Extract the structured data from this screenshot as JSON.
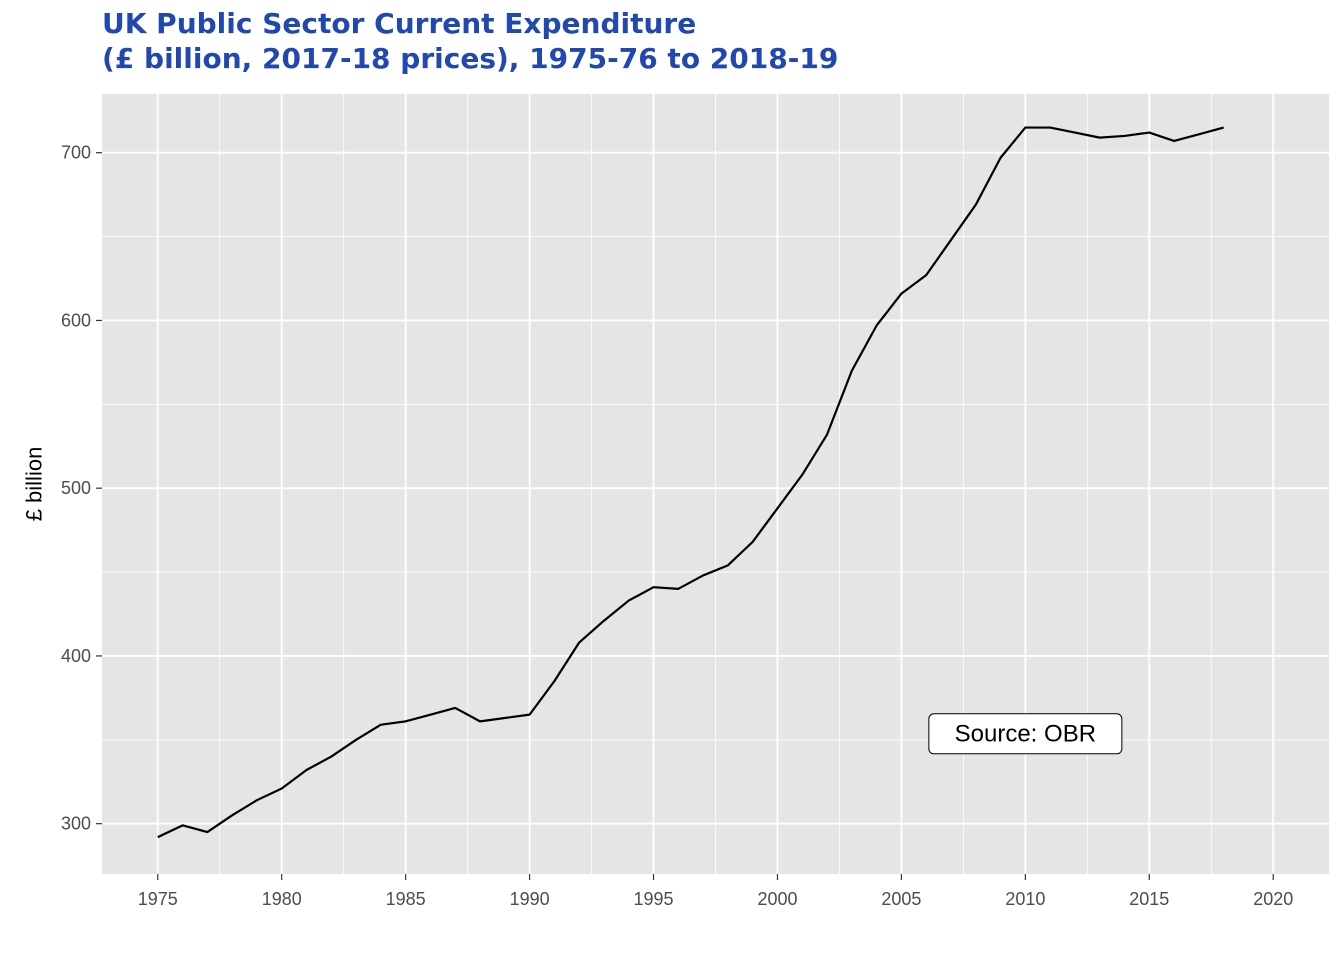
{
  "chart_data": {
    "type": "line",
    "title_line1": "UK Public Sector Current Expenditure",
    "title_line2": "(£ billion, 2017-18 prices), 1975-76 to 2018-19",
    "xlabel": "",
    "ylabel": "£ billion",
    "xlim": [
      1972.75,
      2022.25
    ],
    "ylim": [
      270,
      735
    ],
    "x_ticks": [
      1975,
      1980,
      1985,
      1990,
      1995,
      2000,
      2005,
      2010,
      2015,
      2020
    ],
    "y_ticks": [
      300,
      400,
      500,
      600,
      700
    ],
    "grid": true,
    "annotation": "Source: OBR",
    "annotation_pos": [
      2010,
      350
    ],
    "line_color": "#000000",
    "panel_color": "#e5e5e5",
    "title_color": "#2048b0",
    "series": [
      {
        "x": [
          1975,
          1976,
          1977,
          1978,
          1979,
          1980,
          1981,
          1982,
          1983,
          1984,
          1985,
          1986,
          1987,
          1988,
          1989,
          1990,
          1991,
          1992,
          1993,
          1994,
          1995,
          1996,
          1997,
          1998,
          1999,
          2000,
          2001,
          2002,
          2003,
          2004,
          2005,
          2006,
          2007,
          2008,
          2009,
          2010,
          2011,
          2012,
          2013,
          2014,
          2015,
          2016,
          2017,
          2018
        ],
        "values": [
          292,
          299,
          295,
          305,
          314,
          321,
          332,
          340,
          350,
          359,
          361,
          365,
          369,
          361,
          363,
          365,
          385,
          408,
          421,
          433,
          441,
          440,
          448,
          454,
          468,
          488,
          508,
          532,
          570,
          597,
          616,
          627,
          648,
          669,
          697,
          715,
          715,
          712,
          709,
          710,
          712,
          707,
          711,
          715
        ]
      }
    ]
  }
}
